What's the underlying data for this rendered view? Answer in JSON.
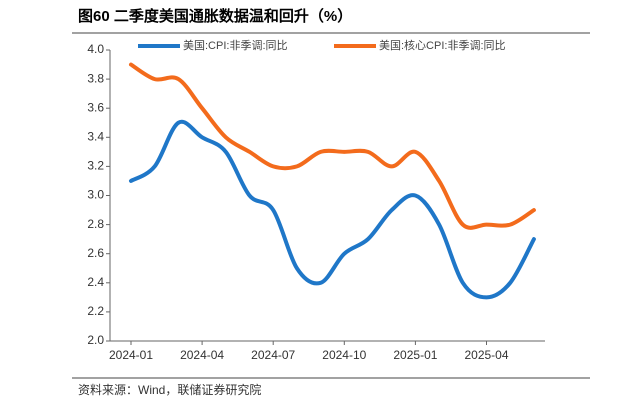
{
  "chart_data": {
    "type": "line",
    "title": "图60 二季度美国通胀数据温和回升（%）",
    "source": "资料来源：Wind，联储证券研究院",
    "categories": [
      "2024-01",
      null,
      null,
      "2024-04",
      null,
      null,
      "2024-07",
      null,
      null,
      "2024-10",
      null,
      null,
      "2025-01",
      null,
      null,
      "2025-04",
      null,
      null
    ],
    "series": [
      {
        "name": "美国:CPI:非季调:同比",
        "color": "#1f77c8",
        "values": [
          3.1,
          3.2,
          3.5,
          3.4,
          3.3,
          3.0,
          2.9,
          2.5,
          2.4,
          2.6,
          2.7,
          2.9,
          3.0,
          2.8,
          2.4,
          2.3,
          2.4,
          2.7
        ]
      },
      {
        "name": "美国:核心CPI:非季调:同比",
        "color": "#f36b1c",
        "values": [
          3.9,
          3.8,
          3.8,
          3.6,
          3.4,
          3.3,
          3.2,
          3.2,
          3.3,
          3.3,
          3.3,
          3.2,
          3.3,
          3.1,
          2.8,
          2.8,
          2.8,
          2.9
        ]
      }
    ],
    "ylim": [
      2.0,
      4.0
    ],
    "yticks": [
      {
        "value": 2,
        "label": "2.0"
      },
      {
        "value": 2.2,
        "label": "2.2"
      },
      {
        "value": 2.4,
        "label": "2.4"
      },
      {
        "value": 2.6,
        "label": "2.6"
      },
      {
        "value": 2.8,
        "label": "2.8"
      },
      {
        "value": 3,
        "label": "3.0"
      },
      {
        "value": 3.2,
        "label": "3.2"
      },
      {
        "value": 3.4,
        "label": "3.4"
      },
      {
        "value": 3.6,
        "label": "3.6"
      },
      {
        "value": 3.8,
        "label": "3.8"
      },
      {
        "value": 4,
        "label": "4.0"
      }
    ],
    "grid": false,
    "legend": "top"
  }
}
